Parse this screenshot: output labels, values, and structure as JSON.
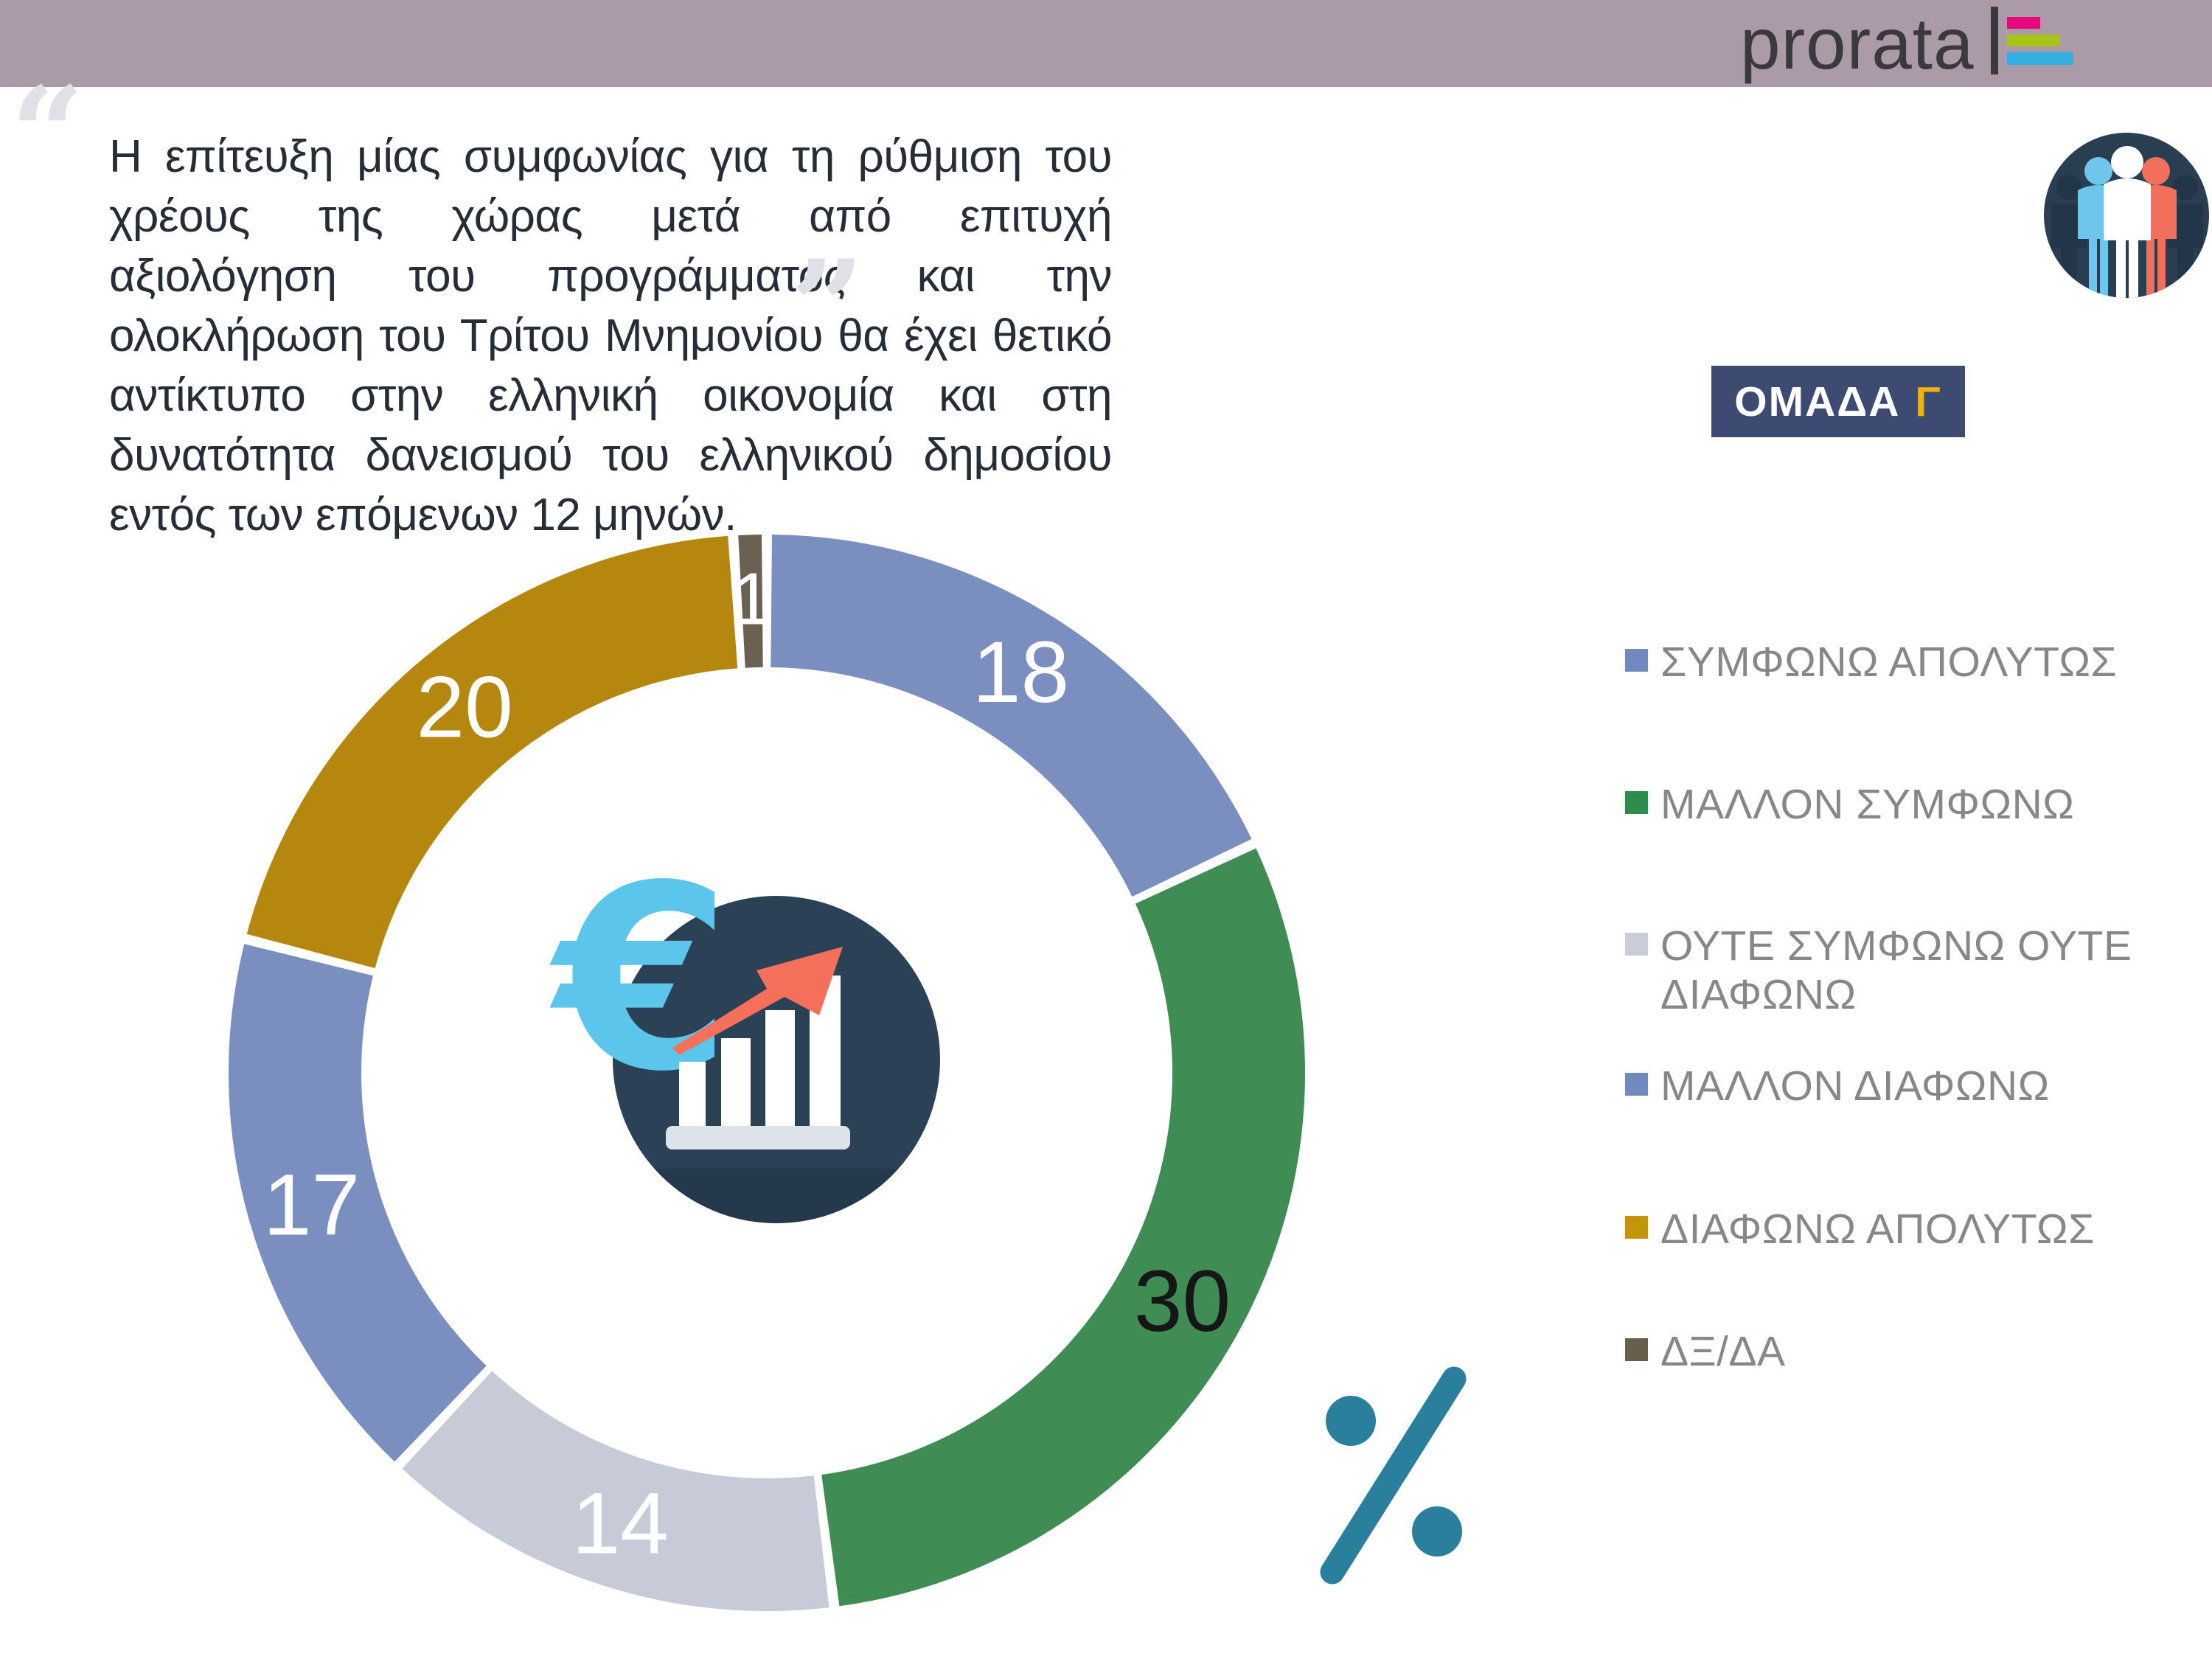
{
  "header": {
    "logo_text": "prorata",
    "logo_bar_colors": [
      "#E6097E",
      "#A5C414",
      "#33AEE1"
    ],
    "banner_color": "#AB9AA8"
  },
  "quote": {
    "open_mark": "“",
    "close_mark": "”",
    "lines": [
      "Η επίτευξη μίας συμφωνίας για τη ρύθμιση του χρέους της χώρας μετά από επιτυχή",
      "αξιολόγηση του προγράμματος και την ολοκλήρωση του Τρίτου Μνημονίου θα έχει θετικό",
      "αντίκτυπο στην ελληνική οικονομία και στη δυνατότητα δανεισμού του ελληνικού δημοσίου",
      "εντός των επόμενων 12 μηνών."
    ]
  },
  "group_badge": {
    "label": "ΟΜΑΔΑ",
    "group_letter": "Γ",
    "background": "#3D4A72",
    "letter_color": "#F1B30A"
  },
  "chart_data": {
    "type": "pie",
    "subtype": "donut",
    "unit": "%",
    "start_angle_deg": 0,
    "direction": "clockwise",
    "hole_ratio": 0.75,
    "categories": [
      "ΣΥΜΦΩΝΩ ΑΠΟΛΥΤΩΣ",
      "ΜΑΛΛΟΝ ΣΥΜΦΩΝΩ",
      "ΟΥΤΕ ΣΥΜΦΩΝΩ ΟΥΤΕ ΔΙΑΦΩΝΩ",
      "ΜΑΛΛΟΝ ΔΙΑΦΩΝΩ",
      "ΔΙΑΦΩΝΩ ΑΠΟΛΥΤΩΣ",
      "ΔΞ/ΔΑ"
    ],
    "values": [
      18,
      30,
      14,
      17,
      20,
      1
    ],
    "slice_colors": [
      "#7A8FC0",
      "#3F8D55",
      "#C7CAD7",
      "#7A8FC0",
      "#B5870F",
      "#6A6153"
    ],
    "label_colors": [
      "#FFFFFF",
      "#161616",
      "#FFFFFF",
      "#FFFFFF",
      "#FFFFFF",
      "#FFFFFF"
    ],
    "legend_position": "right",
    "center_icon": "euro-growth-chart-icon",
    "unit_icon": "percent-icon"
  },
  "legend": {
    "items": [
      {
        "label": "ΣΥΜΦΩΝΩ ΑΠΟΛΥΤΩΣ",
        "color": "#7189BF"
      },
      {
        "label": "ΜΑΛΛΟΝ ΣΥΜΦΩΝΩ",
        "color": "#2F8C4B"
      },
      {
        "label": "ΟΥΤΕ ΣΥΜΦΩΝΩ ΟΥΤΕ\nΔΙΑΦΩΝΩ",
        "color": "#C9CDD9"
      },
      {
        "label": "ΜΑΛΛΟΝ ΔΙΑΦΩΝΩ",
        "color": "#7189BF"
      },
      {
        "label": "ΔΙΑΦΩΝΩ ΑΠΟΛΥΤΩΣ",
        "color": "#C2950B"
      },
      {
        "label": "ΔΞ/ΔΑ",
        "color": "#675E4E"
      }
    ]
  },
  "icons": {
    "people_group": "people-group-icon",
    "euro_chart": "euro-growth-chart-icon",
    "percent": "percent-icon"
  }
}
